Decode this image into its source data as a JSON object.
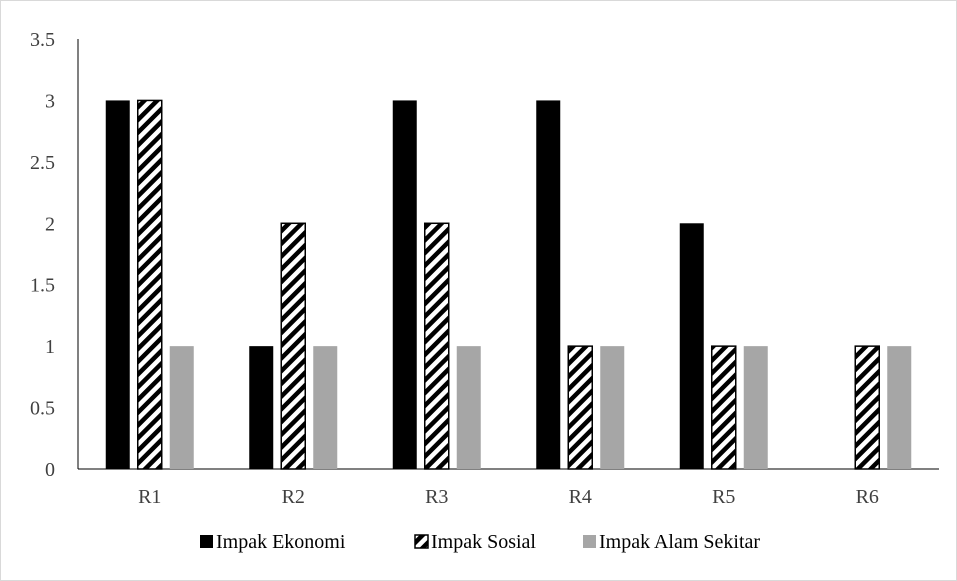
{
  "chart_data": {
    "type": "bar",
    "categories": [
      "R1",
      "R2",
      "R3",
      "R4",
      "R5",
      "R6"
    ],
    "series": [
      {
        "name": "Impak Ekonomi",
        "values": [
          3,
          1,
          3,
          3,
          2,
          0
        ],
        "color": "#000000",
        "pattern": "solid"
      },
      {
        "name": "Impak Sosial",
        "values": [
          3,
          2,
          2,
          1,
          1,
          1
        ],
        "color": "#000000",
        "pattern": "diagonal-stripes"
      },
      {
        "name": "Impak Alam Sekitar",
        "values": [
          1,
          1,
          1,
          1,
          1,
          1
        ],
        "color": "#a6a6a6",
        "pattern": "solid"
      }
    ],
    "yticks": [
      "0",
      "0.5",
      "1",
      "1.5",
      "2",
      "2.5",
      "3",
      "3.5"
    ],
    "ylim": [
      0,
      3.5
    ],
    "grid": false,
    "legend_position": "bottom",
    "title": "",
    "xlabel": "",
    "ylabel": ""
  }
}
